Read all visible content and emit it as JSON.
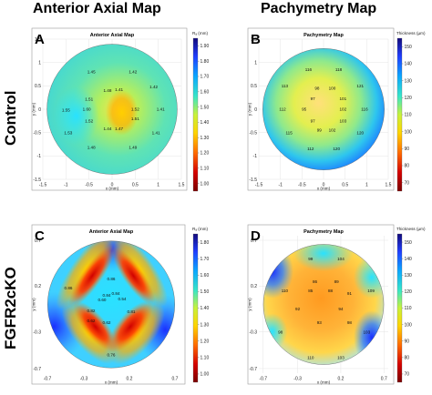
{
  "column_titles": [
    "Anterior Axial Map",
    "Pachymetry Map"
  ],
  "row_labels": [
    "Control",
    "FGFR2cKO"
  ],
  "chart_data": [
    {
      "panel": "A",
      "type": "heatmap",
      "title": "Anterior Axial Map",
      "xlabel": "x (mm)",
      "ylabel": "y (mm)",
      "xlim": [
        -1.5,
        1.5
      ],
      "ylim": [
        -1.5,
        1.5
      ],
      "xticks": [
        "-1.5",
        "-1",
        "-0.5",
        "0",
        "0.5",
        "1",
        "1.5"
      ],
      "yticks": [
        "-1.5",
        "-1",
        "-0.5",
        "0",
        "0.5",
        "1",
        "1.5"
      ],
      "colorbar": {
        "label": "Rₐ (mm)",
        "ticks": [
          "1.90",
          "1.80",
          "1.70",
          "1.60",
          "1.50",
          "1.40",
          "1.30",
          "1.20",
          "1.10",
          "1.00"
        ],
        "min": 0.95,
        "max": 1.95
      },
      "grid": true,
      "values": [
        {
          "x": -0.45,
          "y": 0.8,
          "v": "1.45"
        },
        {
          "x": 0.45,
          "y": 0.8,
          "v": "1.42"
        },
        {
          "x": -0.1,
          "y": 0.4,
          "v": "1.48"
        },
        {
          "x": 0.15,
          "y": 0.42,
          "v": "1.41"
        },
        {
          "x": 0.9,
          "y": 0.48,
          "v": "1.42"
        },
        {
          "x": -0.5,
          "y": 0.22,
          "v": "1.51"
        },
        {
          "x": -1.0,
          "y": -0.02,
          "v": "1.55"
        },
        {
          "x": -0.55,
          "y": 0.0,
          "v": "1.60"
        },
        {
          "x": 0.5,
          "y": 0.0,
          "v": "1.52"
        },
        {
          "x": 1.05,
          "y": 0.0,
          "v": "1.41"
        },
        {
          "x": -0.5,
          "y": -0.25,
          "v": "1.52"
        },
        {
          "x": 0.5,
          "y": -0.2,
          "v": "1.51"
        },
        {
          "x": -0.1,
          "y": -0.42,
          "v": "1.44"
        },
        {
          "x": 0.15,
          "y": -0.42,
          "v": "1.47"
        },
        {
          "x": -0.95,
          "y": -0.5,
          "v": "1.53"
        },
        {
          "x": 0.95,
          "y": -0.5,
          "v": "1.41"
        },
        {
          "x": -0.45,
          "y": -0.82,
          "v": "1.48"
        },
        {
          "x": 0.45,
          "y": -0.82,
          "v": "1.49"
        }
      ]
    },
    {
      "panel": "B",
      "type": "heatmap",
      "title": "Pachymetry Map",
      "xlabel": "x (mm)",
      "ylabel": "y (mm)",
      "xlim": [
        -1.5,
        1.5
      ],
      "ylim": [
        -1.5,
        1.5
      ],
      "xticks": [
        "-1.5",
        "-1",
        "-0.5",
        "0",
        "0.5",
        "1",
        "1.5"
      ],
      "yticks": [
        "-1.5",
        "-1",
        "-0.5",
        "0",
        "0.5",
        "1",
        "1.5"
      ],
      "colorbar": {
        "label": "Thickness (µm)",
        "ticks": [
          "150",
          "140",
          "130",
          "120",
          "110",
          "100",
          "90",
          "80",
          "70"
        ],
        "min": 65,
        "max": 155
      },
      "grid": true,
      "values": [
        {
          "x": -0.35,
          "y": 0.85,
          "v": "116"
        },
        {
          "x": 0.35,
          "y": 0.85,
          "v": "118"
        },
        {
          "x": -0.9,
          "y": 0.5,
          "v": "113"
        },
        {
          "x": 0.85,
          "y": 0.5,
          "v": "121"
        },
        {
          "x": -0.15,
          "y": 0.45,
          "v": "98"
        },
        {
          "x": 0.2,
          "y": 0.45,
          "v": "100"
        },
        {
          "x": -0.25,
          "y": 0.23,
          "v": "97"
        },
        {
          "x": 0.45,
          "y": 0.23,
          "v": "101"
        },
        {
          "x": -0.95,
          "y": 0.0,
          "v": "112"
        },
        {
          "x": -0.45,
          "y": 0.0,
          "v": "95"
        },
        {
          "x": 0.45,
          "y": 0.0,
          "v": "102"
        },
        {
          "x": 0.95,
          "y": 0.0,
          "v": "116"
        },
        {
          "x": -0.25,
          "y": -0.25,
          "v": "97"
        },
        {
          "x": 0.45,
          "y": -0.25,
          "v": "103"
        },
        {
          "x": -0.1,
          "y": -0.45,
          "v": "99"
        },
        {
          "x": 0.2,
          "y": -0.45,
          "v": "102"
        },
        {
          "x": -0.8,
          "y": -0.5,
          "v": "115"
        },
        {
          "x": 0.85,
          "y": -0.5,
          "v": "120"
        },
        {
          "x": -0.3,
          "y": -0.85,
          "v": "112"
        },
        {
          "x": 0.3,
          "y": -0.85,
          "v": "120"
        }
      ]
    },
    {
      "panel": "C",
      "type": "heatmap",
      "title": "Anterior Axial Map",
      "xlabel": "x (mm)",
      "ylabel": "y (mm)",
      "xlim": [
        -0.75,
        0.75
      ],
      "ylim": [
        -0.75,
        0.75
      ],
      "xticks": [
        "-0.7",
        "-0.3",
        "0.2",
        "0.7"
      ],
      "yticks": [
        "-0.7",
        "-0.3",
        "0.2",
        "0.7"
      ],
      "colorbar": {
        "label": "Rₐ (mm)",
        "ticks": [
          "1.80",
          "1.70",
          "1.60",
          "1.50",
          "1.40",
          "1.30",
          "1.20",
          "1.10",
          "1.00"
        ],
        "min": 0.95,
        "max": 1.85
      },
      "grid": false,
      "values": [
        {
          "x": 0.0,
          "y": 0.28,
          "v": "0.86"
        },
        {
          "x": -0.47,
          "y": 0.18,
          "v": "0.86"
        },
        {
          "x": -0.05,
          "y": 0.1,
          "v": "0.84"
        },
        {
          "x": 0.05,
          "y": 0.12,
          "v": "0.84"
        },
        {
          "x": -0.1,
          "y": 0.05,
          "v": "0.60"
        },
        {
          "x": 0.12,
          "y": 0.06,
          "v": "0.54"
        },
        {
          "x": -0.22,
          "y": -0.07,
          "v": "0.82"
        },
        {
          "x": 0.22,
          "y": -0.08,
          "v": "0.81"
        },
        {
          "x": -0.22,
          "y": -0.18,
          "v": "0.62"
        },
        {
          "x": -0.05,
          "y": -0.2,
          "v": "0.62"
        },
        {
          "x": 0.0,
          "y": -0.55,
          "v": "0.76"
        }
      ]
    },
    {
      "panel": "D",
      "type": "heatmap",
      "title": "Pachymetry Map",
      "xlabel": "x (mm)",
      "ylabel": "y (mm)",
      "xlim": [
        -0.75,
        0.75
      ],
      "ylim": [
        -0.75,
        0.75
      ],
      "xticks": [
        "-0.7",
        "-0.3",
        "0.2",
        "0.7"
      ],
      "yticks": [
        "-0.7",
        "-0.3",
        "0.2",
        "0.7"
      ],
      "colorbar": {
        "label": "Thickness (µm)",
        "ticks": [
          "150",
          "140",
          "130",
          "120",
          "110",
          "100",
          "90",
          "80",
          "70"
        ],
        "min": 65,
        "max": 155
      },
      "grid": true,
      "values": [
        {
          "x": -0.15,
          "y": 0.5,
          "v": "99"
        },
        {
          "x": 0.2,
          "y": 0.5,
          "v": "104"
        },
        {
          "x": -0.1,
          "y": 0.25,
          "v": "86"
        },
        {
          "x": 0.15,
          "y": 0.25,
          "v": "89"
        },
        {
          "x": -0.45,
          "y": 0.15,
          "v": "110"
        },
        {
          "x": -0.15,
          "y": 0.15,
          "v": "85"
        },
        {
          "x": 0.08,
          "y": 0.15,
          "v": "88"
        },
        {
          "x": 0.3,
          "y": 0.12,
          "v": "91"
        },
        {
          "x": 0.55,
          "y": 0.15,
          "v": "109"
        },
        {
          "x": -0.3,
          "y": -0.05,
          "v": "92"
        },
        {
          "x": 0.2,
          "y": -0.05,
          "v": "94"
        },
        {
          "x": -0.05,
          "y": -0.2,
          "v": "93"
        },
        {
          "x": 0.3,
          "y": -0.2,
          "v": "98"
        },
        {
          "x": -0.5,
          "y": -0.3,
          "v": "98"
        },
        {
          "x": 0.5,
          "y": -0.3,
          "v": "103"
        },
        {
          "x": -0.15,
          "y": -0.58,
          "v": "110"
        },
        {
          "x": 0.2,
          "y": -0.58,
          "v": "103"
        }
      ]
    }
  ]
}
